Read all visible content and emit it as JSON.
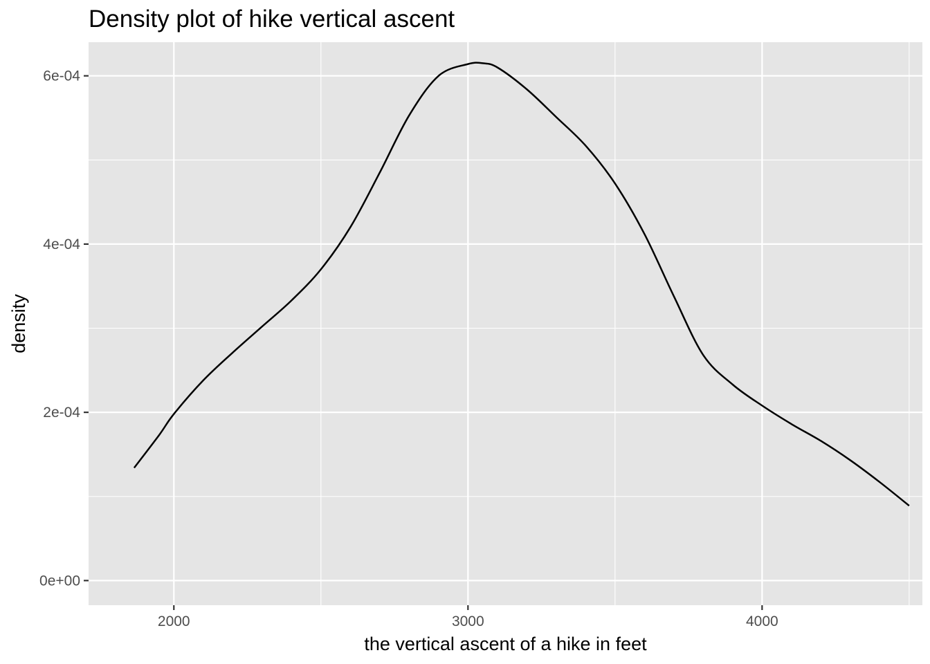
{
  "chart_data": {
    "type": "area",
    "geom": "density",
    "title": "Density plot of hike vertical ascent",
    "xlabel": "the vertical ascent of a hike in feet",
    "ylabel": "density",
    "xlim": [
      1710,
      4545
    ],
    "ylim": [
      -2.93e-05,
      0.00064
    ],
    "x_ticks": [
      {
        "value": 2000,
        "label": "2000"
      },
      {
        "value": 3000,
        "label": "3000"
      },
      {
        "value": 4000,
        "label": "4000"
      }
    ],
    "y_ticks": [
      {
        "value": 0,
        "label": "0e+00"
      },
      {
        "value": 0.0002,
        "label": "2e-04"
      },
      {
        "value": 0.0004,
        "label": "4e-04"
      },
      {
        "value": 0.0006,
        "label": "6e-04"
      }
    ],
    "x_minor": [
      2500,
      3500,
      4500
    ],
    "y_minor": [
      0.0001,
      0.0003,
      0.0005
    ],
    "grid": true,
    "legend": "none",
    "colors": {
      "panel_background": "#e5e5e5",
      "grid_line": "#ffffff",
      "curve": "#000000",
      "tick_mark": "#333333"
    },
    "series": [
      {
        "x": [
          1865,
          1950,
          2000,
          2100,
          2200,
          2300,
          2400,
          2500,
          2600,
          2700,
          2800,
          2900,
          3000,
          3050,
          3100,
          3200,
          3300,
          3400,
          3500,
          3600,
          3700,
          3800,
          3900,
          4000,
          4100,
          4200,
          4300,
          4400,
          4500
        ],
        "y": [
          0.000134,
          0.000173,
          0.000198,
          0.000238,
          0.000271,
          0.000302,
          0.000333,
          0.00037,
          0.00042,
          0.000485,
          0.000553,
          0.0006,
          0.000614,
          0.000615,
          0.00061,
          0.000584,
          0.000551,
          0.000517,
          0.000472,
          0.000412,
          0.000338,
          0.000268,
          0.000233,
          0.000208,
          0.000186,
          0.000166,
          0.000143,
          0.000117,
          8.9e-05
        ]
      }
    ]
  }
}
